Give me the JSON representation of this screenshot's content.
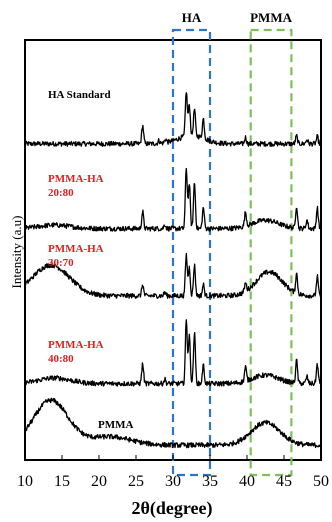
{
  "chart_data": {
    "type": "line",
    "title": "",
    "xlabel": "2θ(degree)",
    "ylabel": "Intensity (a.u)",
    "xlim": [
      10,
      50
    ],
    "xticks": [
      10,
      15,
      20,
      25,
      30,
      35,
      40,
      45,
      50
    ],
    "grid": false,
    "y_ticks_shown": false,
    "highlight_regions": [
      {
        "label": "HA",
        "x_range": [
          30,
          35
        ],
        "color": "#2e74c9",
        "style": "dashed"
      },
      {
        "label": "PMMA",
        "x_range": [
          40.5,
          46
        ],
        "color": "#7fbf5a",
        "style": "dashed"
      }
    ],
    "series": [
      {
        "name": "HA Standard",
        "label_lines": [
          "HA Standard"
        ],
        "label_color": "#000000",
        "baseline_level": 0.8,
        "peaks": [
          [
            25.9,
            1.3
          ],
          [
            28.1,
            0.2
          ],
          [
            29.0,
            0.25
          ],
          [
            31.8,
            3.2
          ],
          [
            32.2,
            2.2
          ],
          [
            32.9,
            1.9
          ],
          [
            34.1,
            1.4
          ],
          [
            39.8,
            0.45
          ],
          [
            46.7,
            0.55
          ],
          [
            48.1,
            0.3
          ],
          [
            49.5,
            0.5
          ]
        ],
        "humps": [
          [
            32.5,
            0.6,
            2.5
          ]
        ]
      },
      {
        "name": "PMMA-HA 20:80",
        "label_lines": [
          "PMMA-HA",
          "20:80"
        ],
        "label_color": "#e02020",
        "baseline_level": 0.1,
        "peaks": [
          [
            25.9,
            1.2
          ],
          [
            28.9,
            0.3
          ],
          [
            31.8,
            4.3
          ],
          [
            32.2,
            3.2
          ],
          [
            32.9,
            3.3
          ],
          [
            34.1,
            1.5
          ],
          [
            39.8,
            1.0
          ],
          [
            46.7,
            1.6
          ],
          [
            48.1,
            0.6
          ],
          [
            49.5,
            1.5
          ]
        ],
        "humps": [
          [
            14,
            0.25,
            3.0
          ],
          [
            42.5,
            0.6,
            2.5
          ]
        ]
      },
      {
        "name": "PMMA-HA 30:70",
        "label_lines": [
          "PMMA-HA",
          "30:70"
        ],
        "label_color": "#e02020",
        "baseline_level": 0.3,
        "peaks": [
          [
            25.9,
            0.8
          ],
          [
            28.9,
            0.25
          ],
          [
            31.8,
            2.9
          ],
          [
            32.2,
            2.0
          ],
          [
            32.9,
            2.2
          ],
          [
            34.1,
            0.8
          ],
          [
            39.8,
            0.6
          ],
          [
            46.7,
            1.4
          ],
          [
            49.5,
            1.4
          ]
        ],
        "humps": [
          [
            13.5,
            2.2,
            3.5
          ],
          [
            43.0,
            1.7,
            2.5
          ]
        ]
      },
      {
        "name": "PMMA-HA 40:80",
        "label_lines": [
          "PMMA-HA",
          "40:80"
        ],
        "label_color": "#e02020",
        "baseline_level": 0.1,
        "peaks": [
          [
            25.9,
            1.4
          ],
          [
            28.9,
            0.3
          ],
          [
            31.8,
            4.5
          ],
          [
            32.2,
            3.4
          ],
          [
            32.9,
            3.6
          ],
          [
            34.1,
            1.3
          ],
          [
            39.8,
            1.0
          ],
          [
            46.7,
            1.6
          ],
          [
            48.1,
            0.5
          ],
          [
            49.5,
            1.4
          ]
        ],
        "humps": [
          [
            14,
            0.4,
            3.0
          ],
          [
            42.5,
            0.6,
            2.5
          ]
        ]
      },
      {
        "name": "PMMA",
        "label_lines": [
          "PMMA"
        ],
        "label_color": "#000000",
        "baseline_level": 0.2,
        "peaks": [],
        "humps": [
          [
            13.5,
            3.2,
            3.3
          ],
          [
            21.5,
            0.6,
            4.0
          ],
          [
            42.5,
            1.6,
            2.8
          ]
        ]
      }
    ]
  }
}
